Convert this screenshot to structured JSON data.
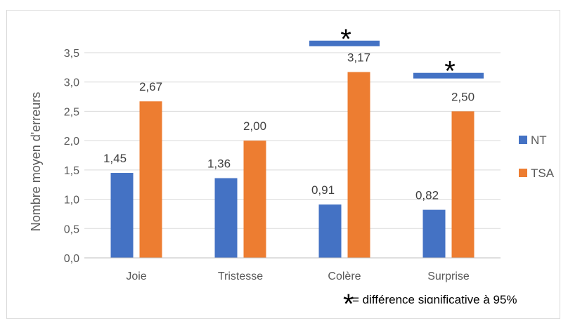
{
  "chart_data": {
    "type": "bar",
    "title": "",
    "xlabel": "",
    "ylabel": "Nombre moyen d'erreurs",
    "categories": [
      "Joie",
      "Tristesse",
      "Colère",
      "Surprise"
    ],
    "series": [
      {
        "name": "NT",
        "color": "#4472C4",
        "values": [
          1.45,
          1.36,
          0.91,
          0.82
        ],
        "labels": [
          "1,45",
          "1,36",
          "0,91",
          "0,82"
        ]
      },
      {
        "name": "TSA",
        "color": "#ED7D31",
        "values": [
          2.67,
          2.0,
          3.17,
          2.5
        ],
        "labels": [
          "2,67",
          "2,00",
          "3,17",
          "2,50"
        ]
      }
    ],
    "ylim": [
      0,
      3.5
    ],
    "yticks": [
      0.0,
      0.5,
      1.0,
      1.5,
      2.0,
      2.5,
      3.0,
      3.5
    ],
    "ytick_labels": [
      "0,0",
      "0,5",
      "1,0",
      "1,5",
      "2,0",
      "2,5",
      "3,0",
      "3,5"
    ],
    "grid": true,
    "legend_position": "right",
    "significance": {
      "categories": [
        "Colère",
        "Surprise"
      ],
      "marker": "*",
      "bar_color": "#4472C4",
      "levels": [
        3.67,
        3.12
      ]
    },
    "footnote_star": "*",
    "footnote_text": "= différence significative à 95%"
  }
}
